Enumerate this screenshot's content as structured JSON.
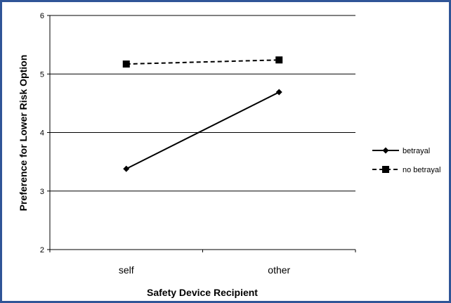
{
  "chart_data": {
    "type": "line",
    "xlabel": "Safety Device Recipient",
    "ylabel": "Preference for Lower Risk Option",
    "categories": [
      "self",
      "other"
    ],
    "ylim": [
      2,
      6
    ],
    "yticks": [
      "2",
      "3",
      "4",
      "5",
      "6"
    ],
    "grid": true,
    "legend_position": "right",
    "series": [
      {
        "name": "betrayal",
        "values": [
          3.38,
          4.69
        ],
        "line": "solid",
        "marker": "diamond",
        "color": "#000000"
      },
      {
        "name": "no betrayal",
        "values": [
          5.17,
          5.24
        ],
        "line": "dashed",
        "marker": "square",
        "color": "#000000"
      }
    ]
  }
}
